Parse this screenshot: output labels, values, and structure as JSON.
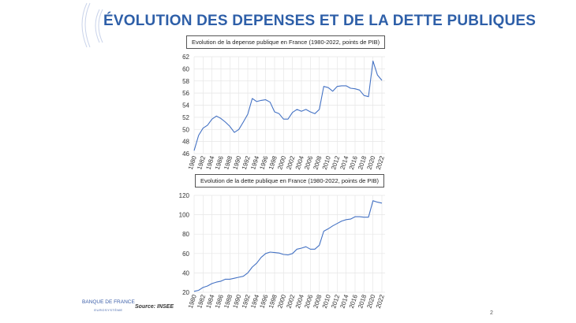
{
  "slide": {
    "title": "ÉVOLUTION DES DEPENSES ET DE LA DETTE PUBLIQUES",
    "source": "Source: INSEE",
    "page_number": "2",
    "logo_text": "BANQUE DE FRANCE",
    "logo_subtext": "EUROSYSTÈME",
    "accent_color": "#2e5fa8"
  },
  "chart_data": [
    {
      "type": "line",
      "title": "Evolution de la depense publique en France (1980-2022, points de PIB)",
      "x": [
        1980,
        1981,
        1982,
        1983,
        1984,
        1985,
        1986,
        1987,
        1988,
        1989,
        1990,
        1991,
        1992,
        1993,
        1994,
        1995,
        1996,
        1997,
        1998,
        1999,
        2000,
        2001,
        2002,
        2003,
        2004,
        2005,
        2006,
        2007,
        2008,
        2009,
        2010,
        2011,
        2012,
        2013,
        2014,
        2015,
        2016,
        2017,
        2018,
        2019,
        2020,
        2021,
        2022
      ],
      "values": [
        46.5,
        49.0,
        50.2,
        50.7,
        51.7,
        52.2,
        51.8,
        51.2,
        50.5,
        49.5,
        50.0,
        51.2,
        52.5,
        55.1,
        54.6,
        54.8,
        54.9,
        54.5,
        52.9,
        52.6,
        51.7,
        51.7,
        52.8,
        53.3,
        53.0,
        53.3,
        52.9,
        52.6,
        53.3,
        57.1,
        56.9,
        56.3,
        57.1,
        57.2,
        57.2,
        56.8,
        56.7,
        56.5,
        55.6,
        55.4,
        61.3,
        59.0,
        58.1
      ],
      "xticks": [
        "1980",
        "1982",
        "1984",
        "1986",
        "1988",
        "1990",
        "1992",
        "1994",
        "1996",
        "1998",
        "2000",
        "2002",
        "2004",
        "2006",
        "2008",
        "2010",
        "2012",
        "2014",
        "2016",
        "2018",
        "2020",
        "2022"
      ],
      "yticks": [
        "46",
        "48",
        "50",
        "52",
        "54",
        "56",
        "58",
        "60",
        "62"
      ],
      "ylim": [
        46,
        62
      ],
      "grid": true,
      "line_color": "#4472c4"
    },
    {
      "type": "line",
      "title": "Evolution de la dette publique en France (1980-2022, points de PIB)",
      "x": [
        1980,
        1981,
        1982,
        1983,
        1984,
        1985,
        1986,
        1987,
        1988,
        1989,
        1990,
        1991,
        1992,
        1993,
        1994,
        1995,
        1996,
        1997,
        1998,
        1999,
        2000,
        2001,
        2002,
        2003,
        2004,
        2005,
        2006,
        2007,
        2008,
        2009,
        2010,
        2011,
        2012,
        2013,
        2014,
        2015,
        2016,
        2017,
        2018,
        2019,
        2020,
        2021,
        2022
      ],
      "values": [
        21,
        22,
        25,
        26.5,
        29,
        30.5,
        31.5,
        33.5,
        33.5,
        34.5,
        35.5,
        36.5,
        40,
        46,
        50,
        56,
        60,
        61.5,
        61,
        60.5,
        59,
        58.5,
        60,
        64.5,
        65.5,
        67,
        64.5,
        64.5,
        68.5,
        83,
        85.5,
        88.5,
        91,
        93.5,
        95,
        95.5,
        98,
        98,
        97.5,
        97.5,
        114.5,
        113,
        112
      ],
      "xticks": [
        "1980",
        "1982",
        "1984",
        "1986",
        "1988",
        "1990",
        "1992",
        "1994",
        "1996",
        "1998",
        "2000",
        "2002",
        "2004",
        "2006",
        "2008",
        "2010",
        "2012",
        "2014",
        "2016",
        "2018",
        "2020",
        "2022"
      ],
      "yticks": [
        "20",
        "40",
        "60",
        "80",
        "100",
        "120"
      ],
      "ylim": [
        20,
        120
      ],
      "grid": true,
      "line_color": "#4472c4"
    }
  ]
}
